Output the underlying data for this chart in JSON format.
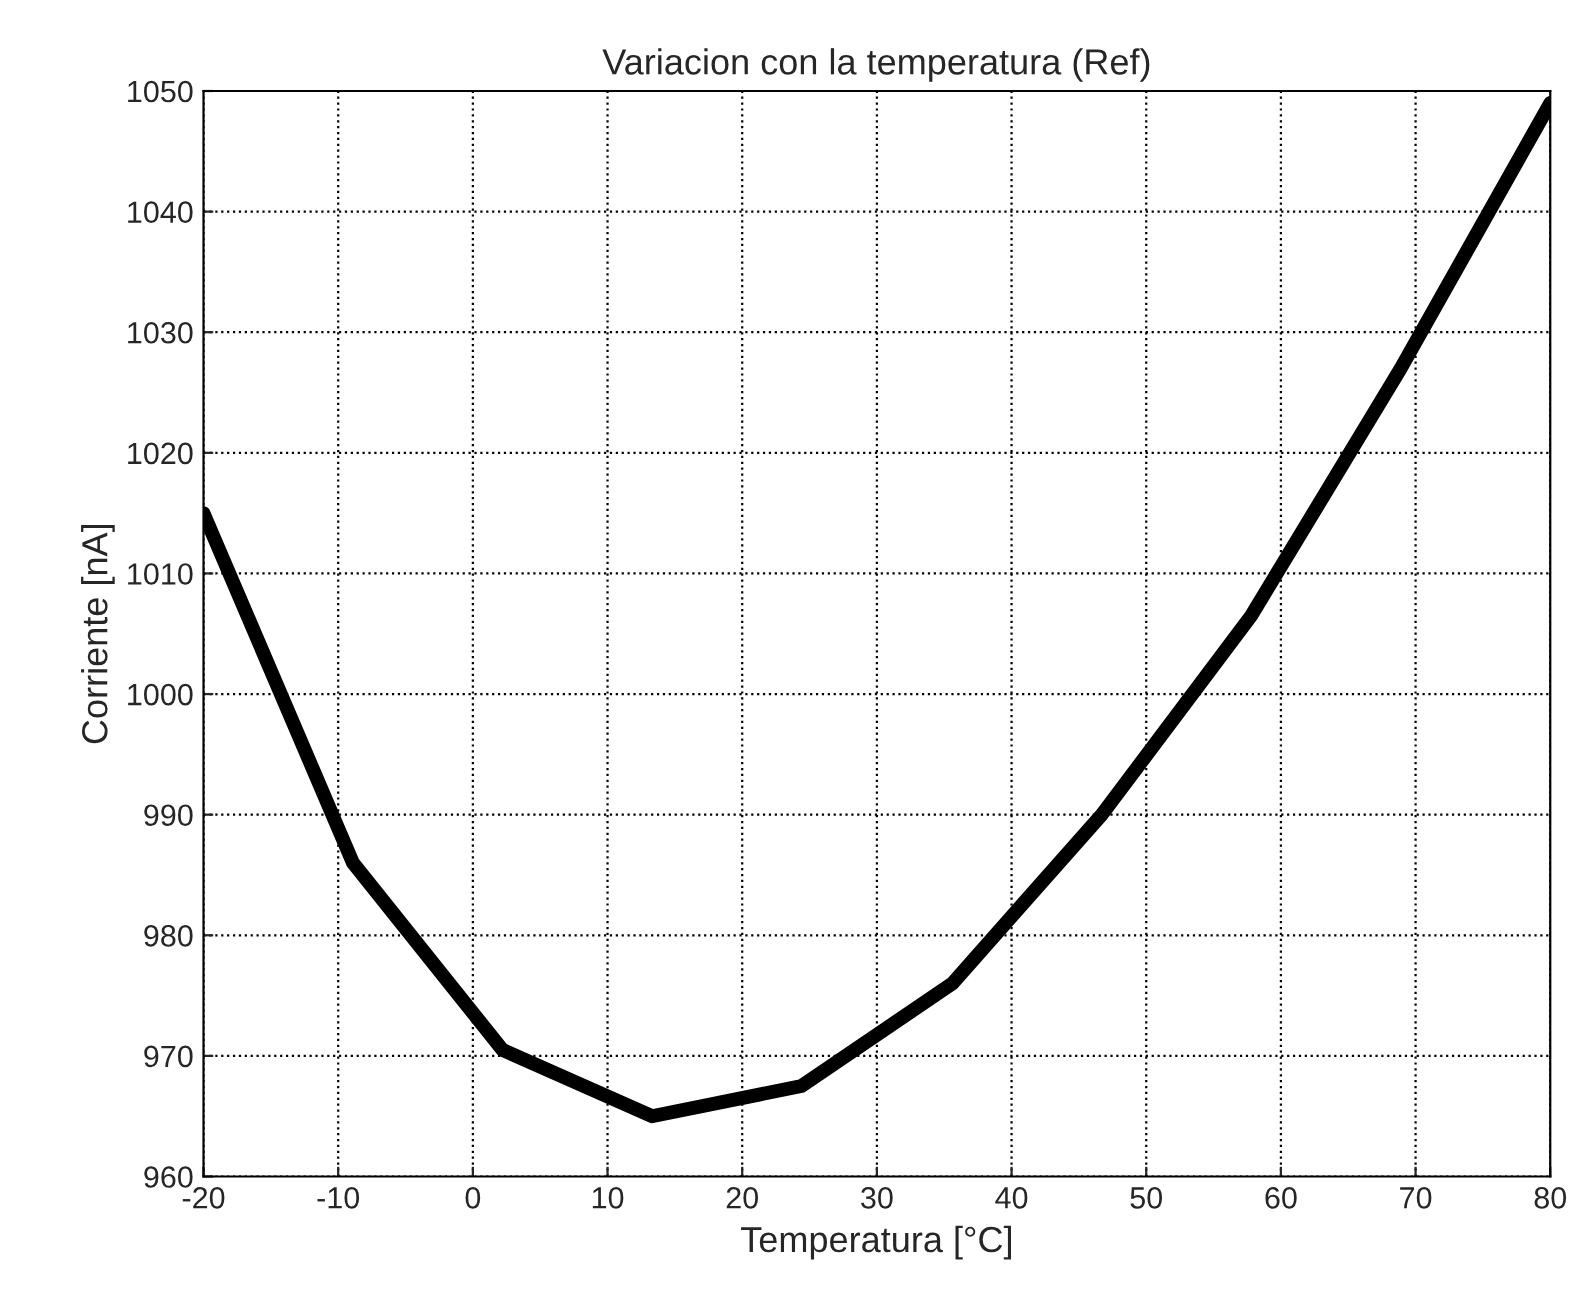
{
  "chart_data": {
    "type": "line",
    "title": "Variacion con la temperatura (Ref)",
    "xlabel": "Temperatura [°C]",
    "ylabel": "Corriente [nA]",
    "x": [
      -20,
      -8.9,
      2.2,
      13.3,
      24.4,
      35.6,
      46.7,
      57.8,
      68.9,
      80
    ],
    "series": [
      {
        "color": "#000000",
        "values": [
          1015,
          986,
          970.5,
          965,
          967.5,
          976,
          990,
          1006.5,
          1027,
          1049
        ]
      }
    ],
    "xlim": [
      -20,
      80
    ],
    "xticks": [
      -20,
      -10,
      0,
      10,
      20,
      30,
      40,
      50,
      60,
      70,
      80
    ],
    "ylim": [
      960,
      1050
    ],
    "yticks": [
      960,
      970,
      980,
      990,
      1000,
      1010,
      1020,
      1030,
      1040,
      1050
    ],
    "grid": true,
    "line_style": "solid"
  }
}
